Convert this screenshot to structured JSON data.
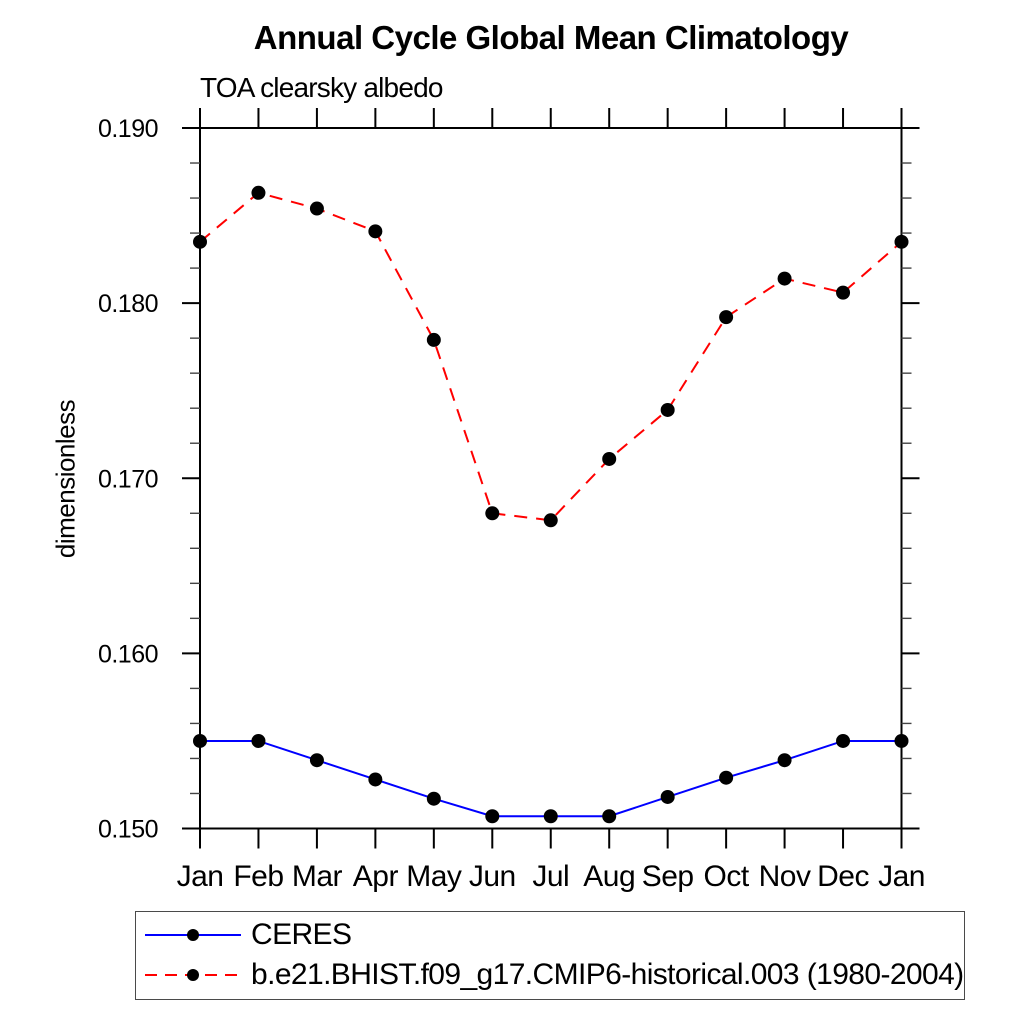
{
  "title": "Annual Cycle Global Mean Climatology",
  "subtitle": "TOA clearsky albedo",
  "ylabel": "dimensionless",
  "colors": {
    "axis": "#000000",
    "minor_tick": "#444444",
    "marker": "#000000",
    "ceres_line": "#0000ff",
    "model_line": "#ff0000",
    "background": "#ffffff"
  },
  "chart_data": {
    "type": "line",
    "categories": [
      "Jan",
      "Feb",
      "Mar",
      "Apr",
      "May",
      "Jun",
      "Jul",
      "Aug",
      "Sep",
      "Oct",
      "Nov",
      "Dec",
      "Jan"
    ],
    "series": [
      {
        "name": "CERES",
        "color": "#0000ff",
        "line_style": "solid",
        "marker": "filled-circle",
        "marker_color": "#000000",
        "values": [
          0.155,
          0.155,
          0.1539,
          0.1528,
          0.1517,
          0.1507,
          0.1507,
          0.1507,
          0.1518,
          0.1529,
          0.1539,
          0.155,
          0.155
        ]
      },
      {
        "name": "b.e21.BHIST.f09_g17.CMIP6-historical.003 (1980-2004)",
        "color": "#ff0000",
        "line_style": "dashed",
        "marker": "filled-circle",
        "marker_color": "#000000",
        "values": [
          0.1835,
          0.1863,
          0.1854,
          0.1841,
          0.1779,
          0.168,
          0.1676,
          0.1711,
          0.1739,
          0.1792,
          0.1814,
          0.1806,
          0.1835
        ]
      }
    ],
    "xlabel": "",
    "ylabel": "dimensionless",
    "ylim": [
      0.15,
      0.19
    ],
    "ytick_step": 0.01,
    "yminor_step": 0.002,
    "ytick_labels": [
      "0.150",
      "0.160",
      "0.170",
      "0.180",
      "0.190"
    ],
    "grid": false,
    "legend_position": "bottom-left-box",
    "tick_style": "outward-mirrored"
  }
}
